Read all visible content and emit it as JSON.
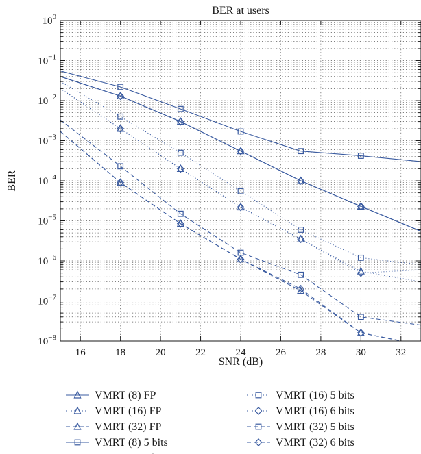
{
  "chart_data": {
    "type": "line",
    "title": "BER at users",
    "xlabel": "SNR (dB)",
    "ylabel": "BER",
    "xlim": [
      15,
      33
    ],
    "ylim": [
      1e-08,
      1
    ],
    "yscale": "log",
    "grid": true,
    "legend_placement": "below",
    "x_ticks": [
      "16",
      "18",
      "20",
      "22",
      "24",
      "26",
      "28",
      "30",
      "32"
    ],
    "y_ticks": [
      {
        "base": "10",
        "exp": "0"
      },
      {
        "base": "10",
        "exp": "−1"
      },
      {
        "base": "10",
        "exp": "−2"
      },
      {
        "base": "10",
        "exp": "−3"
      },
      {
        "base": "10",
        "exp": "−4"
      },
      {
        "base": "10",
        "exp": "−5"
      },
      {
        "base": "10",
        "exp": "−6"
      },
      {
        "base": "10",
        "exp": "−7"
      },
      {
        "base": "10",
        "exp": "−8"
      }
    ],
    "series_color": "#3a5ba0",
    "series": [
      {
        "name": "VMRT (8) FP",
        "marker": "triangle",
        "line": "solid",
        "x": [
          15,
          18,
          21,
          24,
          27,
          30,
          33
        ],
        "y": [
          0.04,
          0.013,
          0.003,
          0.00055,
          0.0001,
          2.3e-05,
          5.5e-06
        ]
      },
      {
        "name": "VMRT (16) FP",
        "marker": "triangle",
        "line": "dotted",
        "x": [
          15,
          18,
          21,
          24,
          27,
          30,
          33
        ],
        "y": [
          0.02,
          0.002,
          0.0002,
          2.2e-05,
          3.5e-06,
          5.5e-07,
          3e-07
        ]
      },
      {
        "name": "VMRT (32) FP",
        "marker": "triangle",
        "line": "dashed",
        "x": [
          15,
          18,
          21,
          24,
          27,
          30,
          33
        ],
        "y": [
          0.0017,
          9e-05,
          8.5e-06,
          1.1e-06,
          1.8e-07,
          1.6e-08,
          8e-09
        ]
      },
      {
        "name": "VMRT (8) 5 bits",
        "marker": "square",
        "line": "solid",
        "x": [
          15,
          18,
          21,
          24,
          27,
          30,
          33
        ],
        "y": [
          0.055,
          0.022,
          0.0062,
          0.0017,
          0.00055,
          0.00042,
          0.0003
        ]
      },
      {
        "name": "VMRT (8) 6 bits",
        "marker": "diamond",
        "line": "solid",
        "x": [
          15,
          18,
          21,
          24,
          27,
          30,
          33
        ],
        "y": [
          0.04,
          0.013,
          0.003,
          0.00055,
          0.0001,
          2.3e-05,
          5.5e-06
        ]
      },
      {
        "name": "VMRT (16) 5 bits",
        "marker": "square",
        "line": "dotted",
        "x": [
          15,
          18,
          21,
          24,
          27,
          30,
          33
        ],
        "y": [
          0.03,
          0.004,
          0.0005,
          5.5e-05,
          6e-06,
          1.2e-06,
          8e-07
        ]
      },
      {
        "name": "VMRT (16) 6 bits",
        "marker": "diamond",
        "line": "dotted",
        "x": [
          15,
          18,
          21,
          24,
          27,
          30,
          33
        ],
        "y": [
          0.02,
          0.002,
          0.0002,
          2.2e-05,
          3.5e-06,
          5e-07,
          6e-07
        ]
      },
      {
        "name": "VMRT (32) 5 bits",
        "marker": "square",
        "line": "dashed",
        "x": [
          15,
          18,
          21,
          24,
          27,
          30,
          33
        ],
        "y": [
          0.0033,
          0.00023,
          1.5e-05,
          1.6e-06,
          4.5e-07,
          4e-08,
          2.5e-08
        ]
      },
      {
        "name": "VMRT (32) 6 bits",
        "marker": "diamond",
        "line": "dashed",
        "x": [
          15,
          18,
          21,
          24,
          27,
          30,
          33
        ],
        "y": [
          0.0017,
          9e-05,
          8.5e-06,
          1.1e-06,
          2e-07,
          1.6e-08,
          8e-09
        ]
      }
    ]
  }
}
